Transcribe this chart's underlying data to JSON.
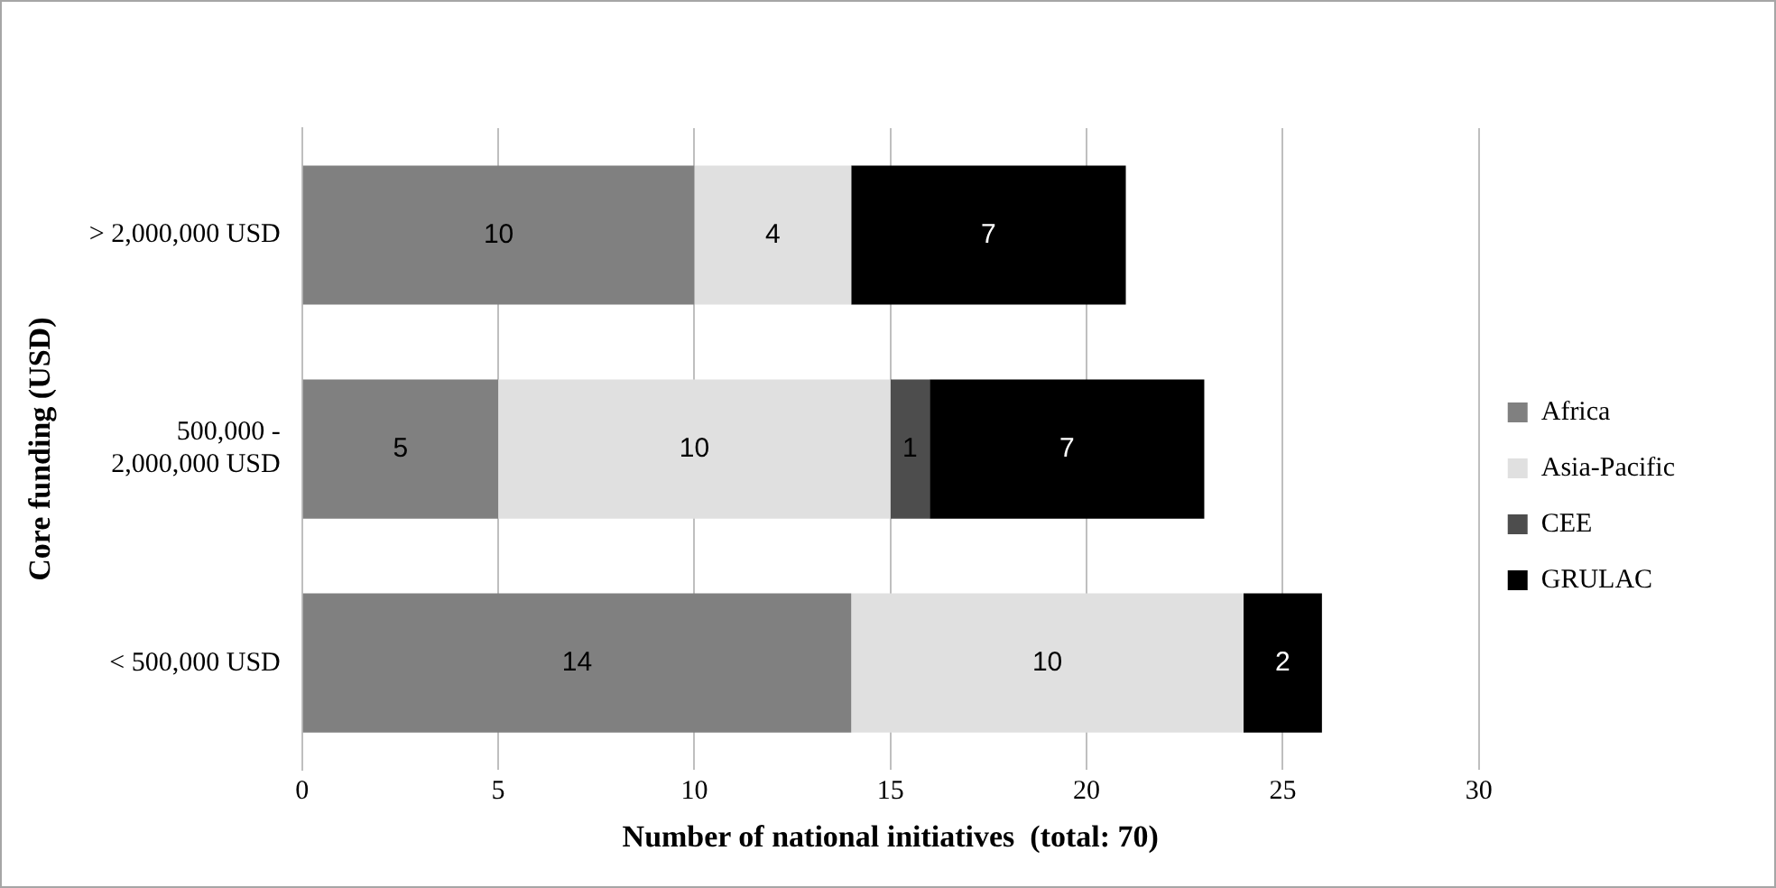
{
  "chart_data": {
    "type": "bar",
    "orientation": "horizontal",
    "stacked": true,
    "xlabel": "Number of national initiatives  (total: 70)",
    "ylabel": "Core funding (USD)",
    "categories": [
      "> 2,000,000 USD",
      "500,000 - 2,000,000 USD",
      "< 500,000 USD"
    ],
    "series": [
      {
        "name": "Africa",
        "color": "#808080",
        "values": [
          10,
          5,
          14
        ]
      },
      {
        "name": "Asia-Pacific",
        "color": "#e0e0e0",
        "values": [
          4,
          10,
          10
        ]
      },
      {
        "name": "CEE",
        "color": "#4d4d4d",
        "values": [
          null,
          1,
          null
        ]
      },
      {
        "name": "GRULAC",
        "color": "#000000",
        "values": [
          7,
          7,
          2
        ]
      }
    ],
    "xlim": [
      0,
      30
    ],
    "xticks": [
      0,
      5,
      10,
      15,
      20,
      25,
      30
    ],
    "grid": "x",
    "legend": "right",
    "data_labels": true
  }
}
